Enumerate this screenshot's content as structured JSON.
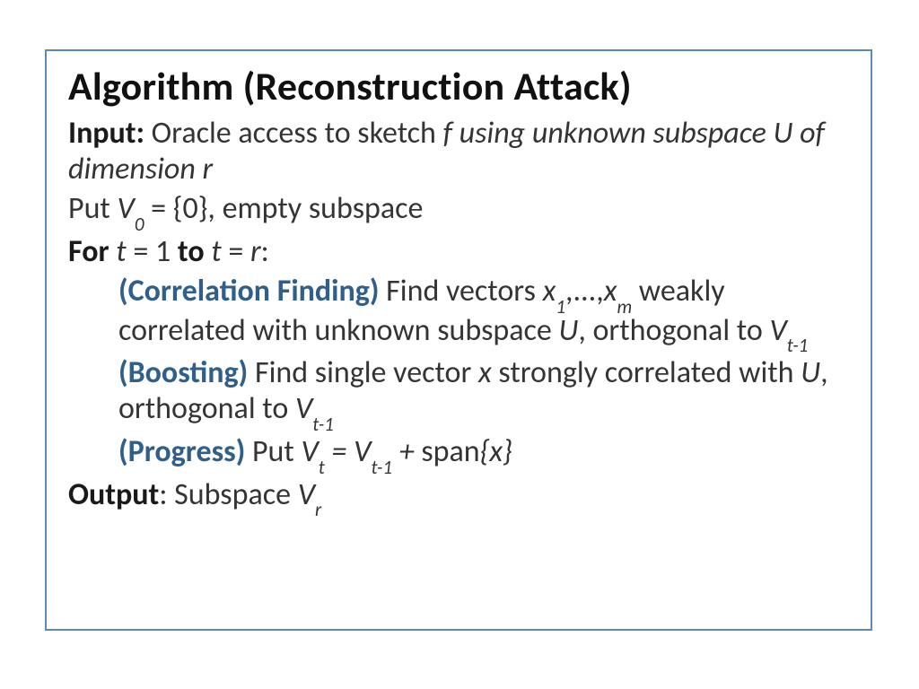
{
  "colors": {
    "border": "#5b8bb5",
    "title": "#111111",
    "body": "#343434",
    "step_label": "#2f5f8a",
    "background": "#ffffff"
  },
  "typography": {
    "title_fontsize": 44,
    "body_fontsize": 34,
    "font_family": "Calibri"
  },
  "title": "Algorithm (Reconstruction Attack)",
  "input_label": "Input:",
  "input_text_plain": " Oracle access to sketch ",
  "input_text_italic": "f using unknown subspace U of dimension r",
  "put_line_prefix": "Put ",
  "put_var": "V",
  "put_sub": "0",
  "put_line_suffix": " = {0}, empty subspace",
  "for_label": "For",
  "for_t1": " t",
  "for_eq1": " = 1 ",
  "to_label": "to",
  "for_t2": " t",
  "for_eq2": " = ",
  "for_r": "r",
  "for_colon": ":",
  "step1_label": "(Correlation Finding)",
  "step1_a": " Find vectors ",
  "step1_x1": "x",
  "step1_sub1": "1",
  "step1_dots": ",...,",
  "step1_xm": "x",
  "step1_subm": "m",
  "step1_b": " weakly correlated with unknown subspace ",
  "step1_U": "U",
  "step1_c": ", orthogonal to ",
  "step1_V": "V",
  "step1_subV": "t-1",
  "step2_label": "(Boosting)",
  "step2_a": " Find single vector ",
  "step2_x": "x",
  "step2_b": " strongly correlated with ",
  "step2_U": "U",
  "step2_c": ", orthogonal to ",
  "step2_V": "V",
  "step2_subV": "t-1",
  "step3_label": "(Progress)",
  "step3_a": " Put ",
  "step3_Vt": "V",
  "step3_subt": "t",
  "step3_eq": " = ",
  "step3_Vt1": "V",
  "step3_subt1": "t-1",
  "step3_plus": " + ",
  "step3_span": "span",
  "step3_braces": "{x}",
  "output_label": "Output",
  "output_colon": ": Subspace ",
  "output_V": "V",
  "output_sub": "r"
}
